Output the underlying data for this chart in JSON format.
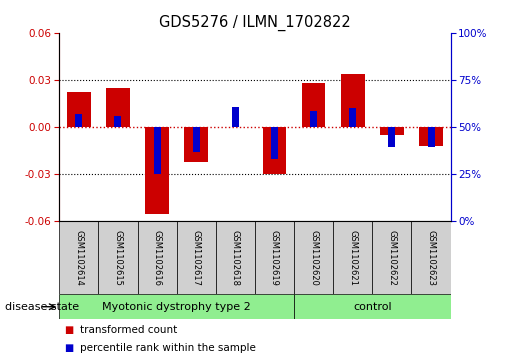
{
  "title": "GDS5276 / ILMN_1702822",
  "samples": [
    "GSM1102614",
    "GSM1102615",
    "GSM1102616",
    "GSM1102617",
    "GSM1102618",
    "GSM1102619",
    "GSM1102620",
    "GSM1102621",
    "GSM1102622",
    "GSM1102623"
  ],
  "red_values": [
    0.022,
    0.025,
    -0.055,
    -0.022,
    0.0,
    -0.03,
    0.028,
    0.034,
    -0.005,
    -0.012
  ],
  "blue_values": [
    0.008,
    0.007,
    -0.03,
    -0.016,
    0.013,
    -0.02,
    0.01,
    0.012,
    -0.013,
    -0.013
  ],
  "disease_groups": [
    {
      "label": "Myotonic dystrophy type 2",
      "start": 0,
      "end": 6,
      "color": "#90EE90"
    },
    {
      "label": "control",
      "start": 6,
      "end": 10,
      "color": "#90EE90"
    }
  ],
  "ylim_left": [
    -0.06,
    0.06
  ],
  "ylim_right": [
    0,
    100
  ],
  "yticks_left": [
    -0.06,
    -0.03,
    0,
    0.03,
    0.06
  ],
  "yticks_right": [
    0,
    25,
    50,
    75,
    100
  ],
  "left_color": "#cc0000",
  "right_color": "#0000cc",
  "zero_line_color": "#cc0000",
  "grid_color": "black",
  "red_bar_width": 0.6,
  "blue_bar_width": 0.18,
  "legend_items": [
    {
      "label": "transformed count",
      "color": "#cc0000"
    },
    {
      "label": "percentile rank within the sample",
      "color": "#0000cc"
    }
  ],
  "disease_state_label": "disease state",
  "background_color": "#ffffff",
  "sample_box_color": "#d0d0d0",
  "xlim": [
    -0.5,
    9.5
  ]
}
